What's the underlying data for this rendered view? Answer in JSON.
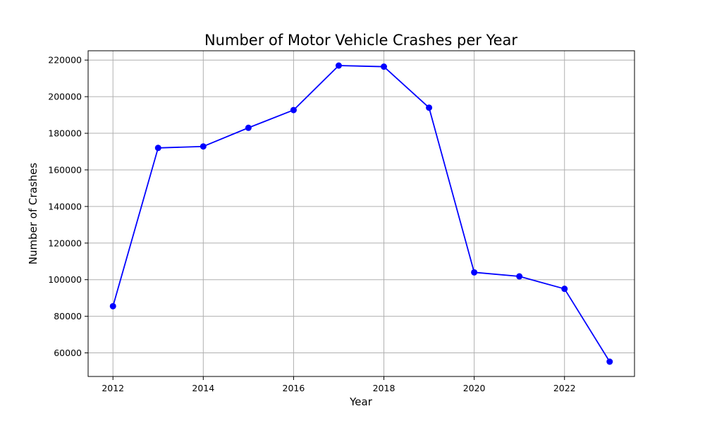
{
  "chart_data": {
    "type": "line",
    "title": "Number of Motor Vehicle Crashes per Year",
    "xlabel": "Year",
    "ylabel": "Number of Crashes",
    "x": [
      2012,
      2013,
      2014,
      2015,
      2016,
      2017,
      2018,
      2019,
      2020,
      2021,
      2022,
      2023
    ],
    "series": [
      {
        "values": [
          85500,
          172000,
          172800,
          183000,
          192700,
          217000,
          216400,
          194000,
          104000,
          101800,
          95000,
          55200
        ],
        "color": "#0000ff",
        "marker": "circle"
      }
    ],
    "xticks": [
      "2012",
      "2014",
      "2016",
      "2018",
      "2020",
      "2022"
    ],
    "yticks": [
      "60000",
      "80000",
      "100000",
      "120000",
      "140000",
      "160000",
      "180000",
      "200000",
      "220000"
    ],
    "xlim": [
      2011.45,
      2023.55
    ],
    "ylim": [
      47110,
      225090
    ],
    "grid": true,
    "grid_color": "#b0b0b0",
    "axis_color": "#000000"
  }
}
